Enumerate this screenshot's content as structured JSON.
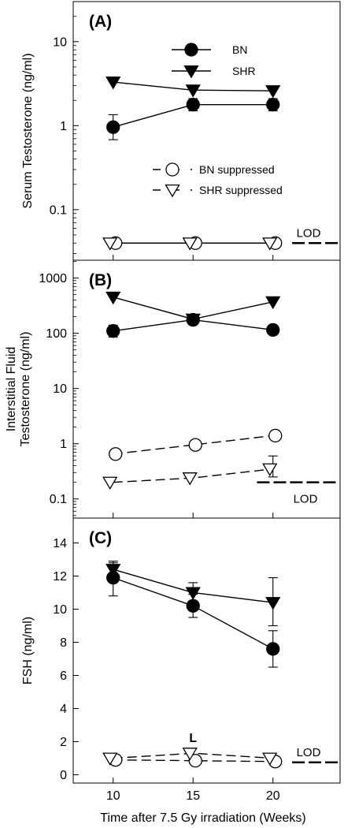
{
  "figure": {
    "xlabel": "Time after 7.5 Gy irradiation (Weeks)",
    "x_ticks": [
      10,
      15,
      20
    ],
    "xlim": [
      7.5,
      24.2
    ]
  },
  "chart_data": [
    {
      "type": "line",
      "panel_label": "(A)",
      "ylabel": "Serum Testosterone (ng/ml)",
      "yscale": "log",
      "ylim": [
        0.025,
        30
      ],
      "y_ticks": [
        0.1,
        1,
        10
      ],
      "y_tick_labels": [
        "0.1",
        "1",
        "10"
      ],
      "x": [
        10,
        15,
        20
      ],
      "series": [
        {
          "name": "BN",
          "marker": "circle-filled",
          "line": "solid",
          "values": [
            0.96,
            1.78,
            1.78
          ],
          "err": [
            [
              0.68,
              1.35
            ],
            [
              1.5,
              2.1
            ],
            [
              1.5,
              2.1
            ]
          ]
        },
        {
          "name": "SHR",
          "marker": "triangle-filled",
          "line": "solid",
          "values": [
            3.3,
            2.65,
            2.6
          ],
          "err": [
            null,
            null,
            null
          ]
        },
        {
          "name": "BN suppressed",
          "marker": "circle-open",
          "line": "solid",
          "values": [
            0.04,
            0.04,
            0.04
          ],
          "err": [
            null,
            null,
            null
          ]
        },
        {
          "name": "SHR suppressed",
          "marker": "triangle-open",
          "line": "solid",
          "values": [
            0.04,
            0.04,
            0.04
          ],
          "err": [
            null,
            null,
            null
          ]
        }
      ],
      "legend": [
        {
          "label": "BN",
          "marker": "circle-filled",
          "dash": false
        },
        {
          "label": "SHR",
          "marker": "triangle-filled",
          "dash": false
        },
        {
          "label": "BN suppressed",
          "marker": "circle-open",
          "dash": true
        },
        {
          "label": "SHR suppressed",
          "marker": "triangle-open",
          "dash": true
        }
      ],
      "lod": {
        "label": "LOD",
        "value": 0.04,
        "x_range": [
          21.2,
          24.2
        ]
      },
      "annotation": ""
    },
    {
      "type": "line",
      "panel_label": "(B)",
      "ylabel_lines": [
        "Interstitial Fluid",
        "Testosterone (ng/ml)"
      ],
      "yscale": "log",
      "ylim": [
        0.045,
        2100
      ],
      "y_ticks": [
        0.1,
        1,
        10,
        100,
        1000
      ],
      "y_tick_labels": [
        "0.1",
        "1",
        "10",
        "100",
        "1000"
      ],
      "x": [
        10,
        15,
        20
      ],
      "series": [
        {
          "name": "BN",
          "marker": "circle-filled",
          "line": "solid",
          "values": [
            110,
            175,
            115
          ],
          "err": [
            [
              85,
              140
            ],
            null,
            null
          ]
        },
        {
          "name": "SHR",
          "marker": "triangle-filled",
          "line": "solid",
          "values": [
            450,
            180,
            370
          ],
          "err": [
            null,
            null,
            null
          ]
        },
        {
          "name": "BN suppressed",
          "marker": "circle-open",
          "line": "dashed",
          "values": [
            0.65,
            0.95,
            1.4
          ],
          "err": [
            null,
            null,
            null
          ]
        },
        {
          "name": "SHR suppressed",
          "marker": "triangle-open",
          "line": "dashed",
          "values": [
            0.2,
            0.24,
            0.35
          ],
          "err": [
            null,
            null,
            [
              0.25,
              0.6
            ]
          ]
        }
      ],
      "lod": {
        "label": "LOD",
        "value": 0.2,
        "x_range": [
          19.0,
          24.2
        ]
      },
      "annotation": ""
    },
    {
      "type": "line",
      "panel_label": "(C)",
      "ylabel": "FSH (ng/ml)",
      "yscale": "linear",
      "ylim": [
        -0.5,
        15.5
      ],
      "y_ticks": [
        0,
        2,
        4,
        6,
        8,
        10,
        12,
        14
      ],
      "y_tick_labels": [
        "0",
        "2",
        "4",
        "6",
        "8",
        "10",
        "12",
        "14"
      ],
      "x": [
        10,
        15,
        20
      ],
      "series": [
        {
          "name": "BN",
          "marker": "circle-filled",
          "line": "solid",
          "values": [
            11.9,
            10.2,
            7.6
          ],
          "err": [
            [
              10.8,
              12.8
            ],
            [
              9.5,
              10.9
            ],
            [
              6.5,
              8.7
            ]
          ]
        },
        {
          "name": "SHR",
          "marker": "triangle-filled",
          "line": "solid",
          "values": [
            12.4,
            11.0,
            10.4
          ],
          "err": [
            [
              12.0,
              12.9
            ],
            [
              10.5,
              11.6
            ],
            [
              9.0,
              11.9
            ]
          ]
        },
        {
          "name": "BN suppressed",
          "marker": "circle-open",
          "line": "dashed",
          "values": [
            0.9,
            0.85,
            0.8
          ],
          "err": [
            null,
            null,
            null
          ]
        },
        {
          "name": "SHR suppressed",
          "marker": "triangle-open",
          "line": "dashed",
          "values": [
            1.0,
            1.3,
            1.0
          ],
          "err": [
            null,
            null,
            null
          ]
        }
      ],
      "lod": {
        "label": "LOD",
        "value": 0.75,
        "x_range": [
          21.2,
          24.2
        ]
      },
      "annotation": "L"
    }
  ]
}
